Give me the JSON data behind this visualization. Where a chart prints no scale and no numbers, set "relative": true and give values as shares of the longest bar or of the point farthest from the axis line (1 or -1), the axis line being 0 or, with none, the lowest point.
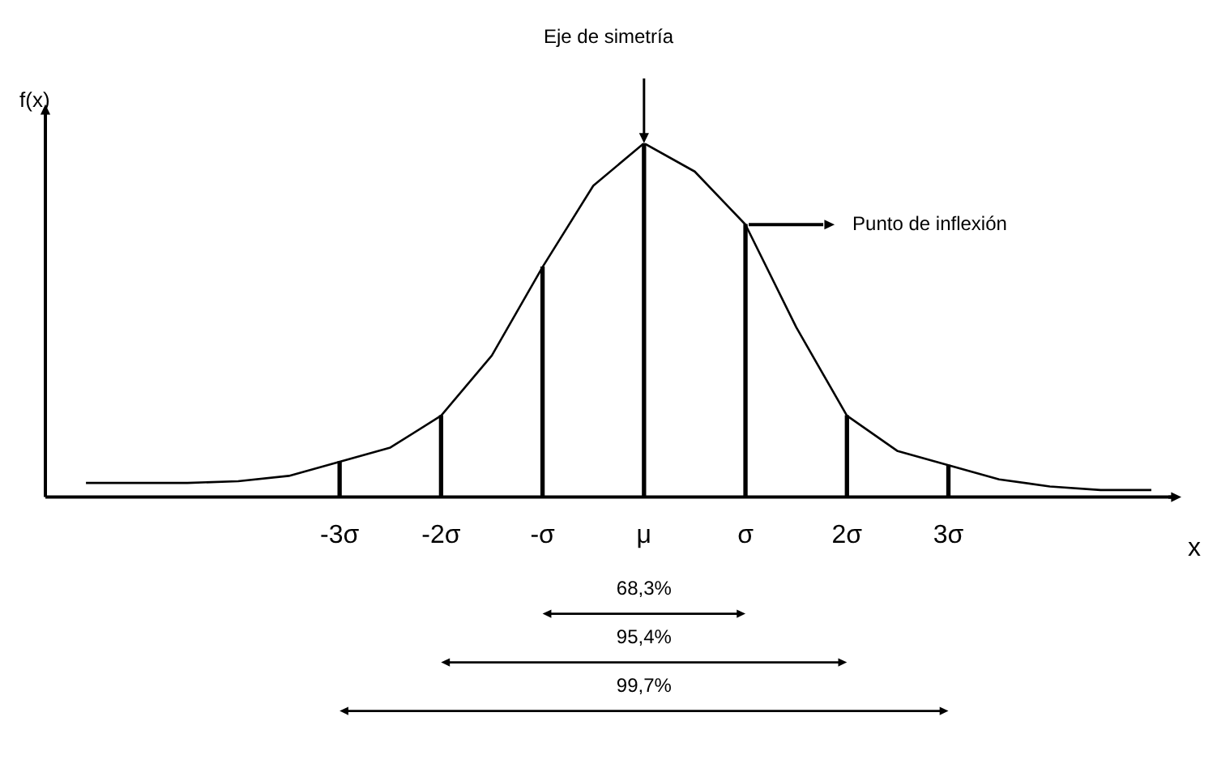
{
  "chart_data": {
    "type": "line",
    "relative": true,
    "title": "Eje de simetría",
    "ylabel": "f(x)",
    "xlabel": "x",
    "xlim": [
      -5.9,
      5.2
    ],
    "xticks": [
      {
        "value": -3,
        "label": "-3σ"
      },
      {
        "value": -2,
        "label": "-2σ"
      },
      {
        "value": -1,
        "label": "-σ"
      },
      {
        "value": 0,
        "label": "μ"
      },
      {
        "value": 1,
        "label": "σ"
      },
      {
        "value": 2,
        "label": "2σ"
      },
      {
        "value": 3,
        "label": "3σ"
      }
    ],
    "x": [
      -5.5,
      -5,
      -4.5,
      -4,
      -3.5,
      -3,
      -2.5,
      -2,
      -1.5,
      -1,
      -0.5,
      0,
      0.5,
      1,
      1.5,
      2,
      2.5,
      3,
      3.5,
      4,
      4.5,
      5
    ],
    "series": [
      {
        "color": "#000000",
        "values": [
          0.04,
          0.04,
          0.04,
          0.045,
          0.06,
          0.1,
          0.14,
          0.23,
          0.4,
          0.65,
          0.88,
          1,
          0.92,
          0.77,
          0.48,
          0.23,
          0.13,
          0.09,
          0.05,
          0.03,
          0.02,
          0.02
        ]
      },
      {
        "type": "bar",
        "color": "#000000",
        "x": [
          -3,
          -2,
          -1,
          0,
          1,
          2,
          3
        ],
        "values": [
          0.1,
          0.23,
          0.65,
          1,
          0.77,
          0.23,
          0.09
        ]
      }
    ],
    "annotations": [
      "Punto de inflexión",
      "68,3%",
      "95,4%",
      "99,7%"
    ],
    "grid": false,
    "legend": false,
    "marker": "none",
    "line_style": "solid"
  }
}
